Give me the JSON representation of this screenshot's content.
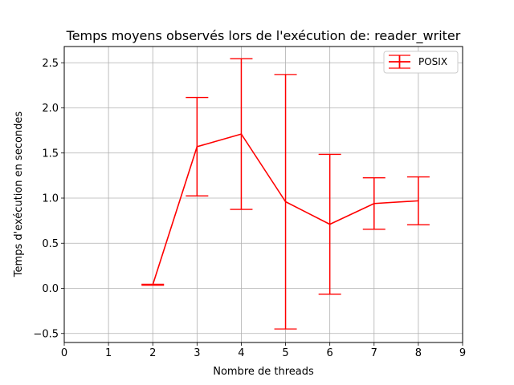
{
  "chart_data": {
    "type": "line",
    "title": "Temps moyens observés lors de l'exécution de: reader_writer",
    "xlabel": "Nombre de threads",
    "ylabel": "Temps d'exécution en secondes",
    "xlim": [
      0,
      9
    ],
    "ylim": [
      -0.6,
      2.68
    ],
    "xticks": [
      0,
      1,
      2,
      3,
      4,
      5,
      6,
      7,
      8,
      9
    ],
    "yticks": [
      -0.5,
      0.0,
      0.5,
      1.0,
      1.5,
      2.0,
      2.5
    ],
    "ytick_labels": [
      "−0.5",
      "0.0",
      "0.5",
      "1.0",
      "1.5",
      "2.0",
      "2.5"
    ],
    "grid": true,
    "legend_position": "top-right",
    "series": [
      {
        "name": "POSIX",
        "color": "#ff0000",
        "x": [
          2,
          3,
          4,
          5,
          6,
          7,
          8
        ],
        "y": [
          0.04,
          1.57,
          1.71,
          0.96,
          0.71,
          0.94,
          0.97
        ],
        "error": [
          0.005,
          0.545,
          0.835,
          1.41,
          0.775,
          0.285,
          0.265
        ]
      }
    ]
  }
}
